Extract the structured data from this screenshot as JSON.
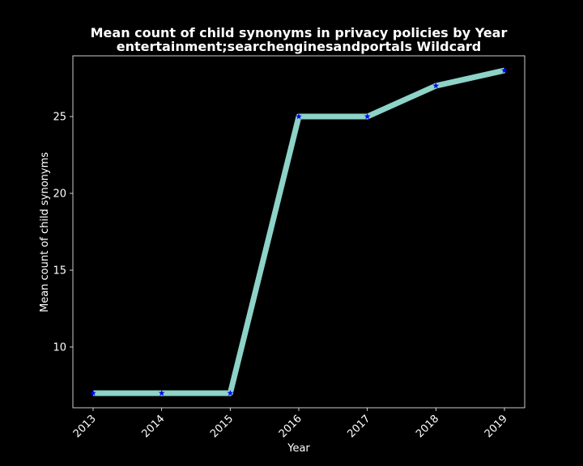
{
  "chart_data": {
    "type": "line",
    "title": "Mean count of child synonyms in privacy policies by Year",
    "subtitle": "entertainment;searchenginesandportals Wildcard",
    "xlabel": "Year",
    "ylabel": "Mean count of child synonyms",
    "categories": [
      "2013",
      "2014",
      "2015",
      "2016",
      "2017",
      "2018",
      "2019"
    ],
    "series": [
      {
        "values": [
          7,
          7,
          7,
          25,
          25,
          27,
          28
        ],
        "line_color": "#8dd3c7",
        "marker_color": "#0000ff",
        "marker": "star"
      }
    ],
    "yticks": [
      10,
      15,
      20,
      25
    ],
    "ylim": [
      6.05,
      28.95
    ],
    "grid": false,
    "background": "#000000",
    "text_color": "#ffffff"
  }
}
